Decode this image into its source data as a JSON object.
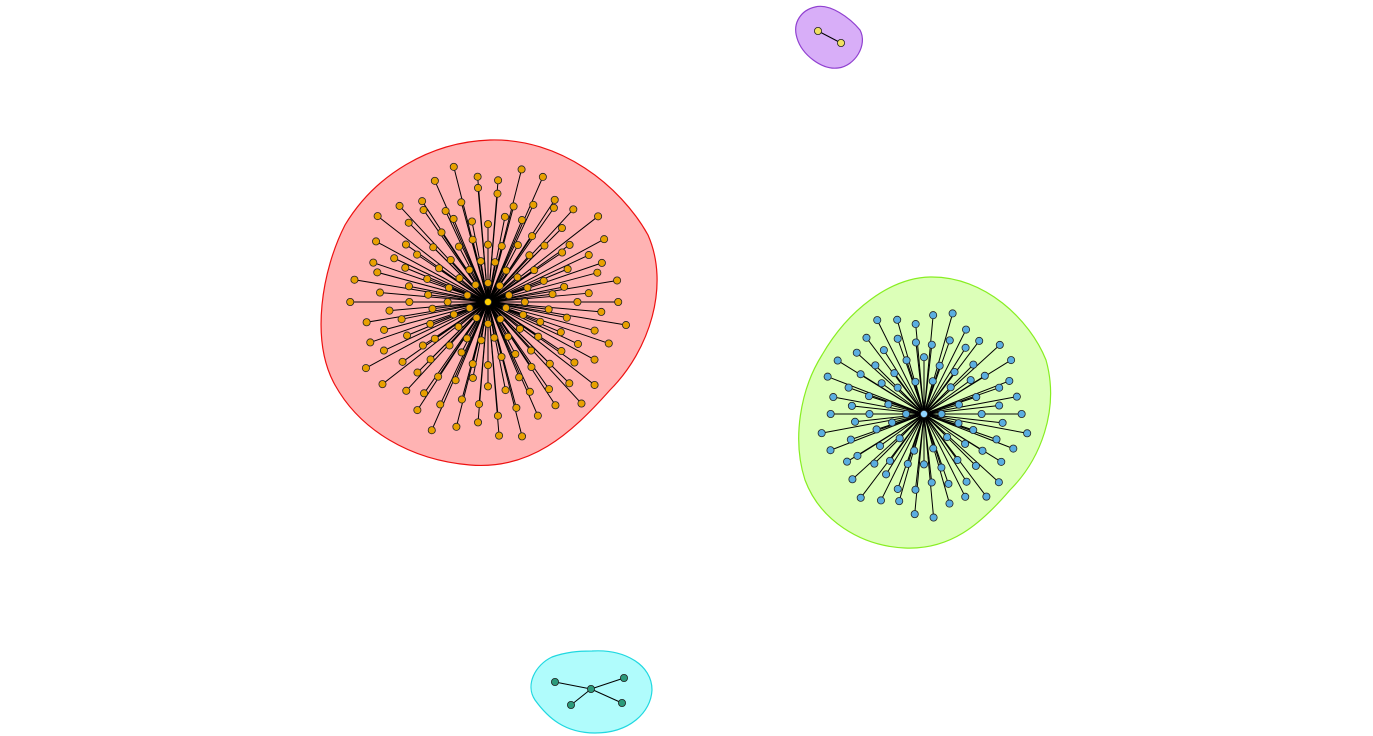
{
  "diagram": {
    "type": "network-graph",
    "layout": "star clusters",
    "clusters": [
      {
        "id": "red",
        "hull_fill": "#ffb3b3",
        "hull_stroke": "#ee1111",
        "node_fill": "#e8a000",
        "hub_fill": "#ffd000",
        "node_stroke": "#222222",
        "edge_color": "#000000",
        "topology": "star",
        "leaf_count": 178
      },
      {
        "id": "green",
        "hull_fill": "#dcffb8",
        "hull_stroke": "#88ee22",
        "node_fill": "#5aaee0",
        "hub_fill": "#90d4ff",
        "node_stroke": "#222222",
        "edge_color": "#000000",
        "topology": "star",
        "leaf_count": 96
      },
      {
        "id": "purple",
        "hull_fill": "#d8aef8",
        "hull_stroke": "#9040d0",
        "node_fill": "#f0e060",
        "node_stroke": "#222222",
        "edge_color": "#000000",
        "topology": "single-edge",
        "leaf_count": 1
      },
      {
        "id": "cyan",
        "hull_fill": "#b0fcfc",
        "hull_stroke": "#20d8e0",
        "node_fill": "#2a9a7a",
        "node_stroke": "#222222",
        "edge_color": "#000000",
        "topology": "star",
        "leaf_count": 4
      }
    ]
  }
}
